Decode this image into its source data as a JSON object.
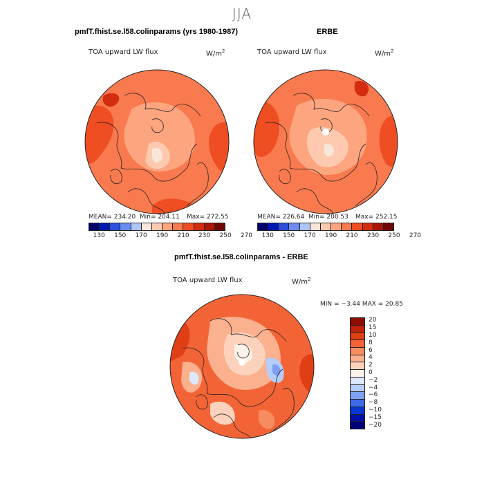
{
  "season": "JJA",
  "colors": {
    "abs_scale": [
      "#00006e",
      "#0018b4",
      "#2c4fdc",
      "#6a8cf0",
      "#aec5f8",
      "#f7e6d9",
      "#fdcab0",
      "#fca57f",
      "#f97a4e",
      "#ee4e22",
      "#d32c0e",
      "#a91708",
      "#6e0605"
    ],
    "diff_scale": [
      "#00007a",
      "#0010a8",
      "#0a36d4",
      "#3d6ae8",
      "#7ea0f2",
      "#b5cdf8",
      "#dde9fb",
      "#fdf2ea",
      "#fcd2bc",
      "#fbb08e",
      "#f88b5f",
      "#f26436",
      "#e03e15",
      "#c2220a",
      "#8d0d04"
    ],
    "coast": "#222222"
  },
  "panels": [
    {
      "title": "pmfT.fhist.se.l58.colinparams (yrs 1980-1987)",
      "variable": "TOA upward LW flux",
      "units": "W/m",
      "units_sup": "2",
      "mean_text": "MEAN= 234.20",
      "min_text": "Min= 204.11",
      "max_text": "Max= 272.55",
      "ticks": [
        "130",
        "150",
        "170",
        "190",
        "210",
        "230",
        "250",
        "270"
      ]
    },
    {
      "title": "ERBE",
      "variable": "TOA upward LW flux",
      "units": "W/m",
      "units_sup": "2",
      "mean_text": "MEAN= 226.64",
      "min_text": "Min= 200.53",
      "max_text": "Max= 252.15",
      "ticks": [
        "130",
        "150",
        "170",
        "190",
        "210",
        "230",
        "250",
        "270"
      ]
    }
  ],
  "diff": {
    "title": "pmfT.fhist.se.l58.colinparams - ERBE",
    "variable": "TOA upward LW flux",
    "units": "W/m",
    "units_sup": "2",
    "minmax_text": "MIN =  −3.44 MAX =  20.85",
    "levels": [
      "20",
      "15",
      "10",
      "8",
      "6",
      "4",
      "2",
      "0",
      "−2",
      "−4",
      "−6",
      "−8",
      "−10",
      "−15",
      "−20"
    ]
  }
}
